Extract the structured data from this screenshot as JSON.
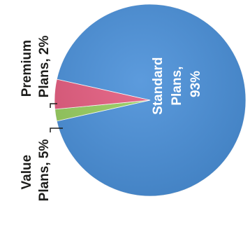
{
  "chart_data": {
    "type": "pie",
    "title": "",
    "categories": [
      "Standard Plans",
      "Premium Plans",
      "Value Plans"
    ],
    "values": [
      93,
      2,
      5
    ],
    "colors": [
      "#4a90d9",
      "#96cc5e",
      "#e35b7e"
    ],
    "labels": [
      {
        "name": "Standard",
        "line2": "Plans,",
        "line3": "93%"
      },
      {
        "name": "Premium",
        "line2": "Plans, 2%"
      },
      {
        "name": "Value",
        "line2": "Plans, 5%"
      }
    ],
    "legend": "none"
  }
}
